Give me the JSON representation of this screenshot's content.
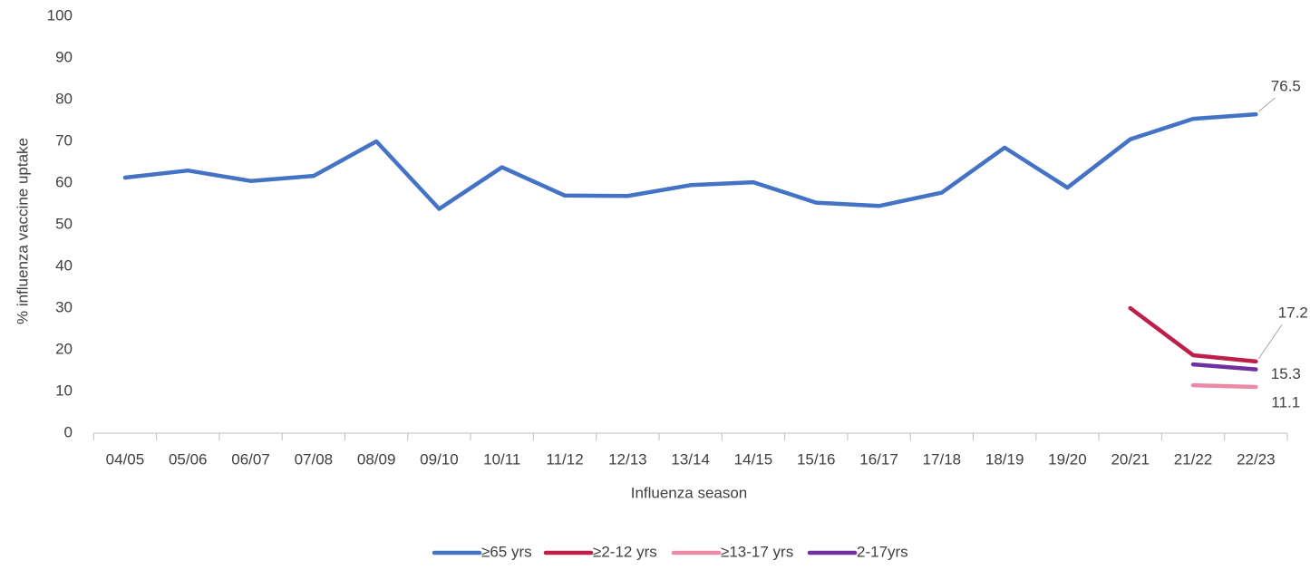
{
  "chart_data": {
    "type": "line",
    "x_label": "Influenza season",
    "y_label": "%  influenza vaccine uptake",
    "categories": [
      "04/05",
      "05/06",
      "06/07",
      "07/08",
      "08/09",
      "09/10",
      "10/11",
      "11/12",
      "12/13",
      "13/14",
      "14/15",
      "15/16",
      "16/17",
      "17/18",
      "18/19",
      "19/20",
      "20/21",
      "21/22",
      "22/23"
    ],
    "ylim": [
      0,
      100
    ],
    "yticks": [
      0,
      10,
      20,
      30,
      40,
      50,
      60,
      70,
      80,
      90,
      100
    ],
    "grid": false,
    "legend": "bottom",
    "series": [
      {
        "name": "≥65 yrs",
        "color": "#4472c4",
        "values": [
          61.3,
          63.0,
          60.5,
          61.7,
          70.0,
          53.8,
          63.8,
          57.0,
          56.9,
          59.5,
          60.2,
          55.3,
          54.5,
          57.7,
          68.5,
          58.9,
          70.5,
          75.4,
          76.5
        ]
      },
      {
        "name": "≥2-12 yrs",
        "color": "#be1e4a",
        "values": [
          null,
          null,
          null,
          null,
          null,
          null,
          null,
          null,
          null,
          null,
          null,
          null,
          null,
          null,
          null,
          null,
          30.0,
          18.7,
          17.2
        ]
      },
      {
        "name": "≥13-17 yrs",
        "color": "#ea8aa6",
        "values": [
          null,
          null,
          null,
          null,
          null,
          null,
          null,
          null,
          null,
          null,
          null,
          null,
          null,
          null,
          null,
          null,
          null,
          11.5,
          11.1
        ]
      },
      {
        "name": "2-17yrs",
        "color": "#7030a0",
        "values": [
          null,
          null,
          null,
          null,
          null,
          null,
          null,
          null,
          null,
          null,
          null,
          null,
          null,
          null,
          null,
          null,
          null,
          16.5,
          15.3
        ]
      }
    ]
  }
}
